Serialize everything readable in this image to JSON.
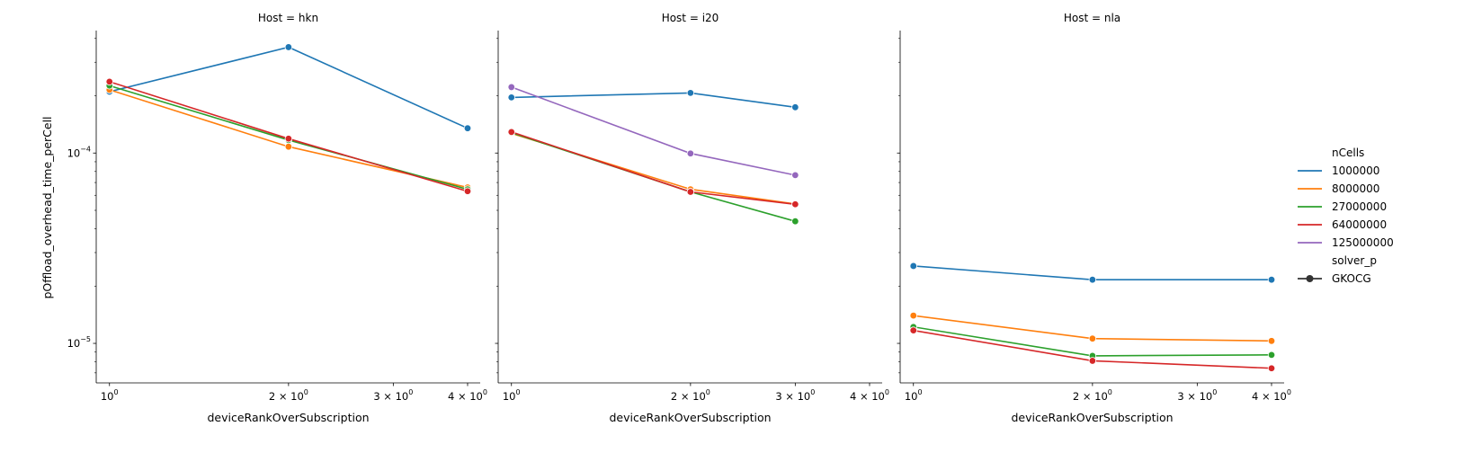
{
  "chart_data": {
    "type": "line",
    "ylabel": "pOffload_overhead_time_perCell",
    "xlabel": "deviceRankOverSubscription",
    "xscale": "log",
    "yscale": "log",
    "xlim": [
      0.95,
      4.2
    ],
    "ylim": [
      6.2e-06,
      0.00044
    ],
    "x_ticks": [
      {
        "value": 1,
        "base": "10",
        "exp": "0"
      },
      {
        "value": 2,
        "base": "2 × 10",
        "exp": "0"
      },
      {
        "value": 3,
        "base": "3 × 10",
        "exp": "0"
      },
      {
        "value": 4,
        "base": "4 × 10",
        "exp": "0"
      }
    ],
    "y_ticks": [
      {
        "value": 1e-05,
        "base": "10",
        "exp": "−5"
      },
      {
        "value": 0.0001,
        "base": "10",
        "exp": "−4"
      }
    ],
    "legend": {
      "placement": "right",
      "hue_title": "nCells",
      "style_title": "solver_p",
      "style_entries": [
        "GKOCG"
      ]
    },
    "series_meta": [
      {
        "name": "1000000",
        "color": "#1f77b4"
      },
      {
        "name": "8000000",
        "color": "#ff7f0e"
      },
      {
        "name": "27000000",
        "color": "#2ca02c"
      },
      {
        "name": "64000000",
        "color": "#d62728"
      },
      {
        "name": "125000000",
        "color": "#9467bd"
      }
    ],
    "panels": [
      {
        "title": "Host = hkn",
        "series": [
          {
            "name": "1000000",
            "x": [
              1,
              2,
              4
            ],
            "y": [
              0.00021,
              0.00036,
              0.000135
            ]
          },
          {
            "name": "8000000",
            "x": [
              1,
              2,
              4
            ],
            "y": [
              0.000215,
              0.000108,
              6.6e-05
            ]
          },
          {
            "name": "27000000",
            "x": [
              1,
              2,
              4
            ],
            "y": [
              0.000226,
              0.000117,
              6.45e-05
            ]
          },
          {
            "name": "64000000",
            "x": [
              1,
              2,
              4
            ],
            "y": [
              0.000237,
              0.000119,
              6.3e-05
            ]
          }
        ]
      },
      {
        "title": "Host = i20",
        "series": [
          {
            "name": "1000000",
            "x": [
              1,
              2,
              3
            ],
            "y": [
              0.000196,
              0.000207,
              0.000174
            ]
          },
          {
            "name": "8000000",
            "x": [
              1,
              2,
              3
            ],
            "y": [
              0.000127,
              6.45e-05,
              5.4e-05
            ]
          },
          {
            "name": "27000000",
            "x": [
              1,
              2,
              3
            ],
            "y": [
              0.000128,
              6.25e-05,
              4.38e-05
            ]
          },
          {
            "name": "64000000",
            "x": [
              1,
              2,
              3
            ],
            "y": [
              0.000129,
              6.25e-05,
              5.38e-05
            ]
          },
          {
            "name": "125000000",
            "x": [
              1,
              2,
              3
            ],
            "y": [
              0.000222,
              9.95e-05,
              7.65e-05
            ]
          }
        ]
      },
      {
        "title": "Host = nla",
        "series": [
          {
            "name": "1000000",
            "x": [
              1,
              2,
              4
            ],
            "y": [
              2.55e-05,
              2.16e-05,
              2.16e-05
            ]
          },
          {
            "name": "8000000",
            "x": [
              1,
              2,
              4
            ],
            "y": [
              1.4e-05,
              1.06e-05,
              1.03e-05
            ]
          },
          {
            "name": "27000000",
            "x": [
              1,
              2,
              4
            ],
            "y": [
              1.22e-05,
              8.6e-06,
              8.7e-06
            ]
          },
          {
            "name": "64000000",
            "x": [
              1,
              2,
              4
            ],
            "y": [
              1.17e-05,
              8.1e-06,
              7.4e-06
            ]
          }
        ]
      }
    ]
  }
}
